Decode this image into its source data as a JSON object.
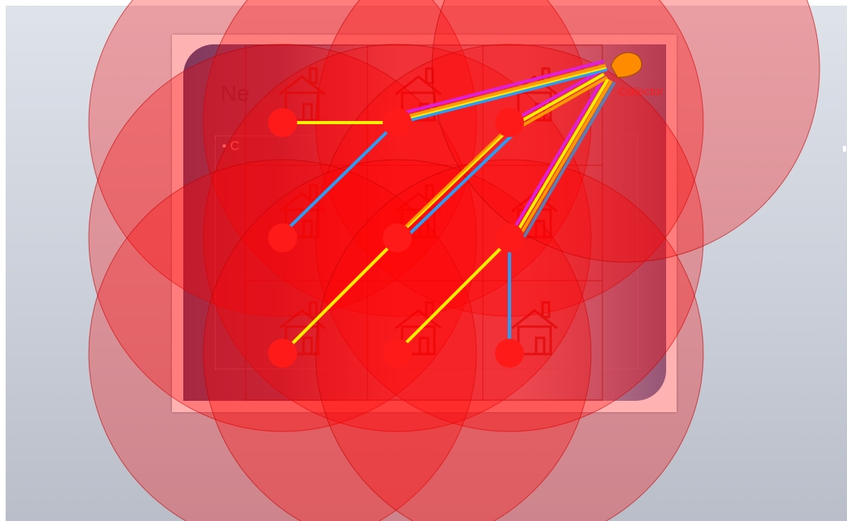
{
  "slide": {
    "title_fragment": "Ne",
    "bullet_fragment": "• C"
  },
  "diagram": {
    "collector_label": "Collector",
    "coverage_color": "#ff0000",
    "node_color": "#ff1a1a",
    "collector_color": "#ff8c00",
    "link_colors": {
      "yellow": "#ffee00",
      "blue": "#2a9df4",
      "magenta": "#e01fd8",
      "orange": "#ff9a00"
    },
    "house_icon": "house-icon"
  }
}
